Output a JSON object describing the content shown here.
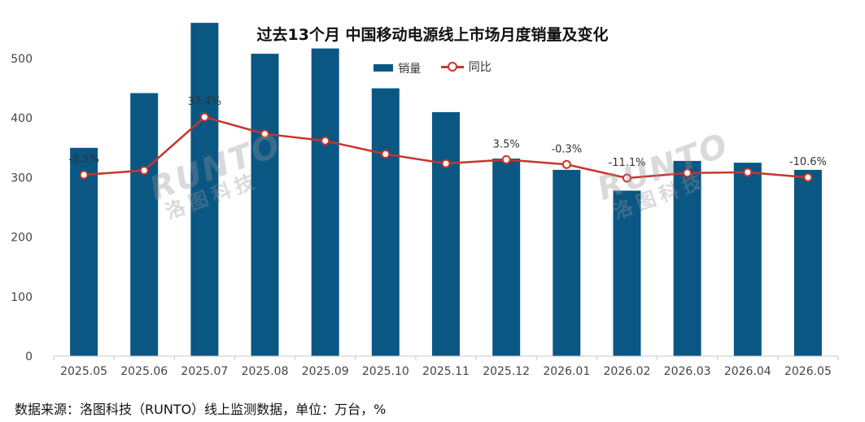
{
  "chart_data": {
    "type": "bar",
    "title": "过去13个月 中国移动电源线上市场月度销量及变化",
    "categories": [
      "2025.05",
      "2025.06",
      "2025.07",
      "2025.08",
      "2025.09",
      "2025.10",
      "2025.11",
      "2025.12",
      "2026.01",
      "2026.02",
      "2026.03",
      "2026.04",
      "2026.05"
    ],
    "series": [
      {
        "name": "销量",
        "kind": "bar",
        "color": "#0a5784",
        "values": [
          350,
          442,
          560,
          508,
          517,
          450,
          410,
          332,
          313,
          278,
          328,
          325,
          313
        ]
      },
      {
        "name": "同比",
        "kind": "line",
        "color": "#c8342c",
        "unit": "%",
        "values": [
          -8.5,
          -5.0,
          37.4,
          24.0,
          18.5,
          8.0,
          0.5,
          3.5,
          -0.3,
          -11.1,
          -7.0,
          -6.5,
          -10.6
        ],
        "point_labels": [
          "-8.5%",
          "",
          "37.4%",
          "",
          "",
          "",
          "",
          "3.5%",
          "-0.3%",
          "-11.1%",
          "",
          "",
          "-10.6%"
        ]
      }
    ],
    "y_ticks": [
      "0",
      "100",
      "200",
      "300",
      "400",
      "500"
    ],
    "ylim": [
      0,
      600
    ],
    "y2lim": [
      -60,
      45
    ],
    "grid": false,
    "legend_position": "top-center"
  },
  "legend": {
    "bar_label": "销量",
    "line_label": "同比"
  },
  "watermark": {
    "text": "RUNTO",
    "subtext": "洛图科技"
  },
  "source_note": "数据来源：洛图科技（RUNTO）线上监测数据，单位：万台，%"
}
